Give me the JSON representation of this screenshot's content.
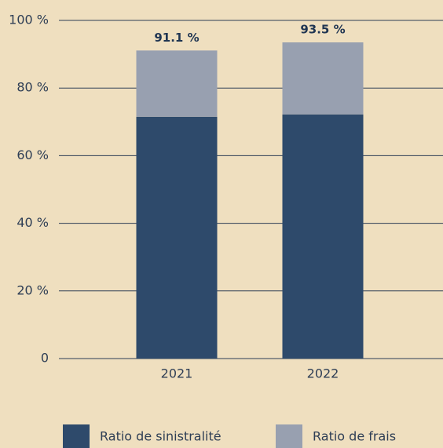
{
  "chart_data": {
    "type": "stacked_bar",
    "categories": [
      "2021",
      "2022"
    ],
    "series": [
      {
        "name": "Ratio de sinistralité",
        "color": "#2e4a6b",
        "values": [
          71.5,
          72.2
        ]
      },
      {
        "name": "Ratio de frais",
        "color": "#98a0b0",
        "values": [
          19.6,
          21.3
        ]
      }
    ],
    "totals": [
      91.1,
      93.5
    ],
    "total_labels": [
      "91.1 %",
      "93.5 %"
    ],
    "ylim": [
      0,
      100
    ],
    "yticks": [
      0,
      {
        "value": 20,
        "label": "20 %"
      },
      {
        "value": 40,
        "label": "40 %"
      },
      {
        "value": 60,
        "label": "60 %"
      },
      {
        "value": 80,
        "label": "80 %"
      },
      {
        "value": 100,
        "label": "100 %"
      }
    ],
    "grid": true
  }
}
